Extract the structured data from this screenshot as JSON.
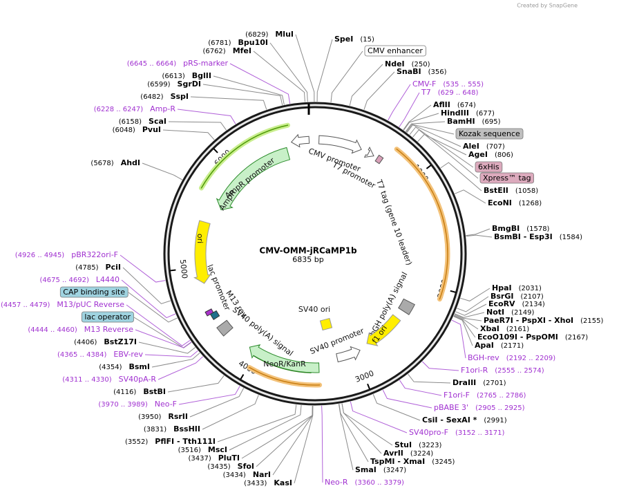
{
  "credit": "Created by SnapGene",
  "map": {
    "name": "CMV-OMM-jRCaMP1b",
    "length": {
      "value": 6835,
      "label": "6835 bp"
    },
    "ticks": [
      1000,
      2000,
      3000,
      4000,
      5000,
      6000
    ]
  },
  "features": [
    "CMV promoter",
    "T7 promoter",
    "T7 tag (gene 10 leader)",
    "bGH poly(A) signal",
    "f1 ori",
    "SV40 promoter",
    "SV40 ori",
    "NeoR/KanR",
    "SV40 poly(A) signal",
    "M13 rev",
    "lac promoter",
    "ori",
    "AmpR",
    "AmpR promoter"
  ],
  "sites": [
    {
      "name": "SpeI",
      "position": "(15)",
      "color": "#000000"
    },
    {
      "name": "CMV enhancer",
      "color": "#000000",
      "box": "#ffffff"
    },
    {
      "name": "NdeI",
      "position": "(250)",
      "color": "#000000"
    },
    {
      "name": "SnaBI",
      "position": "(356)",
      "color": "#000000"
    },
    {
      "name": "CMV-F",
      "position": "(535 .. 555)",
      "color": "#a030d0"
    },
    {
      "name": "T7",
      "position": "(629 .. 648)",
      "color": "#a030d0"
    },
    {
      "name": "AflII",
      "position": "(674)",
      "color": "#000000"
    },
    {
      "name": "HindIII",
      "position": "(677)",
      "color": "#000000"
    },
    {
      "name": "BamHI",
      "position": "(695)",
      "color": "#000000"
    },
    {
      "name": "Kozak sequence",
      "color": "#000000",
      "box": "#bfbfbf"
    },
    {
      "name": "AleI",
      "position": "(707)",
      "color": "#000000"
    },
    {
      "name": "AgeI",
      "position": "(806)",
      "color": "#000000"
    },
    {
      "name": "6xHis",
      "color": "#000000",
      "box": "#dcaabd"
    },
    {
      "name": "Xpress™ tag",
      "color": "#000000",
      "box": "#dcaabd"
    },
    {
      "name": "BstEII",
      "position": "(1058)",
      "color": "#000000"
    },
    {
      "name": "EcoNI",
      "position": "(1268)",
      "color": "#000000"
    },
    {
      "name": "BmgBI",
      "position": "(1578)",
      "color": "#000000"
    },
    {
      "name": "BsmBI  - Esp3I",
      "position": "(1584)",
      "color": "#000000"
    },
    {
      "name": "HpaI",
      "position": "(2031)",
      "color": "#000000"
    },
    {
      "name": "BsrGI",
      "position": "(2107)",
      "color": "#000000"
    },
    {
      "name": "EcoRV",
      "position": "(2134)",
      "color": "#000000"
    },
    {
      "name": "NotI",
      "position": "(2149)",
      "color": "#000000"
    },
    {
      "name": "PaeR7I - PspXI - XhoI",
      "position": "(2155)",
      "color": "#000000"
    },
    {
      "name": "XbaI",
      "position": "(2161)",
      "color": "#000000"
    },
    {
      "name": "EcoO109I - PspOMI",
      "position": "(2167)",
      "color": "#000000"
    },
    {
      "name": "ApaI",
      "position": "(2171)",
      "color": "#000000"
    },
    {
      "name": "BGH-rev",
      "position": "(2192 .. 2209)",
      "color": "#a030d0"
    },
    {
      "name": "F1ori-R",
      "position": "(2555 .. 2574)",
      "color": "#a030d0"
    },
    {
      "name": "DraIII",
      "position": "(2701)",
      "color": "#000000"
    },
    {
      "name": "F1ori-F",
      "position": "(2765 .. 2786)",
      "color": "#a030d0"
    },
    {
      "name": "pBABE 3'",
      "position": "(2905 .. 2925)",
      "color": "#a030d0"
    },
    {
      "name": "CsiI  - SexAI *",
      "position": "(2991)",
      "color": "#000000"
    },
    {
      "name": "SV40pro-F",
      "position": "(3152 .. 3171)",
      "color": "#a030d0"
    },
    {
      "name": "StuI",
      "position": "(3223)",
      "color": "#000000"
    },
    {
      "name": "AvrII",
      "position": "(3224)",
      "color": "#000000"
    },
    {
      "name": "TspMI - XmaI",
      "position": "(3245)",
      "color": "#000000"
    },
    {
      "name": "SmaI",
      "position": "(3247)",
      "color": "#000000"
    },
    {
      "name": "Neo-R",
      "position": "(3360 .. 3379)",
      "color": "#a030d0"
    },
    {
      "name": "MluI",
      "position": "(6829)",
      "color": "#000000"
    },
    {
      "name": "Bpu10I",
      "position": "(6781)",
      "color": "#000000"
    },
    {
      "name": "MfeI",
      "position": "(6762)",
      "color": "#000000"
    },
    {
      "name": "pRS-marker",
      "position": "(6645 .. 6664)",
      "color": "#a030d0"
    },
    {
      "name": "BglII",
      "position": "(6613)",
      "color": "#000000"
    },
    {
      "name": "SgrDI",
      "position": "(6599)",
      "color": "#000000"
    },
    {
      "name": "SspI",
      "position": "(6482)",
      "color": "#000000"
    },
    {
      "name": "Amp-R",
      "position": "(6228 .. 6247)",
      "color": "#a030d0"
    },
    {
      "name": "ScaI",
      "position": "(6158)",
      "color": "#000000"
    },
    {
      "name": "PvuI",
      "position": "(6048)",
      "color": "#000000"
    },
    {
      "name": "AhdI",
      "position": "(5678)",
      "color": "#000000"
    },
    {
      "name": "pBR322ori-F",
      "position": "(4926 .. 4945)",
      "color": "#a030d0"
    },
    {
      "name": "PciI",
      "position": "(4785)",
      "color": "#000000"
    },
    {
      "name": "L4440",
      "position": "(4675 .. 4692)",
      "color": "#a030d0"
    },
    {
      "name": "CAP binding site",
      "color": "#000000",
      "box": "#9fd3e0"
    },
    {
      "name": "M13/pUC Reverse",
      "position": "(4457 .. 4479)",
      "color": "#a030d0"
    },
    {
      "name": "lac operator",
      "color": "#000000",
      "box": "#9fd3e0"
    },
    {
      "name": "M13 Reverse",
      "position": "(4444 .. 4460)",
      "color": "#a030d0"
    },
    {
      "name": "BstZ17I",
      "position": "(4406)",
      "color": "#000000"
    },
    {
      "name": "EBV-rev",
      "position": "(4365 .. 4384)",
      "color": "#a030d0"
    },
    {
      "name": "BsmI",
      "position": "(4354)",
      "color": "#000000"
    },
    {
      "name": "SV40pA-R",
      "position": "(4311 .. 4330)",
      "color": "#a030d0"
    },
    {
      "name": "BstBI",
      "position": "(4116)",
      "color": "#000000"
    },
    {
      "name": "Neo-F",
      "position": "(3970 .. 3989)",
      "color": "#a030d0"
    },
    {
      "name": "RsrII",
      "position": "(3950)",
      "color": "#000000"
    },
    {
      "name": "BssHII",
      "position": "(3831)",
      "color": "#000000"
    },
    {
      "name": "PflFI  - Tth111I",
      "position": "(3552)",
      "color": "#000000"
    },
    {
      "name": "MscI",
      "position": "(3516)",
      "color": "#000000"
    },
    {
      "name": "PluTI",
      "position": "(3437)",
      "color": "#000000"
    },
    {
      "name": "SfoI",
      "position": "(3435)",
      "color": "#000000"
    },
    {
      "name": "NarI",
      "position": "(3434)",
      "color": "#000000"
    },
    {
      "name": "KasI",
      "position": "(3433)",
      "color": "#000000"
    }
  ]
}
